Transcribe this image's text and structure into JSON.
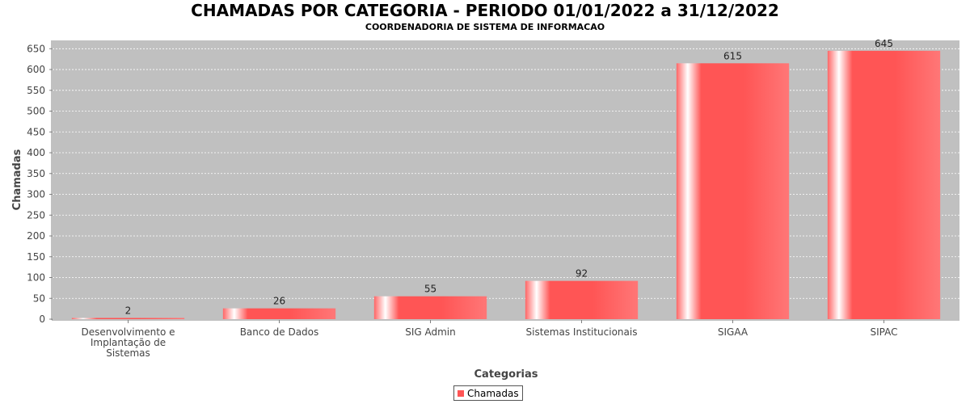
{
  "chart_data": {
    "type": "bar",
    "title": "CHAMADAS POR CATEGORIA - PERIODO 01/01/2022 a 31/12/2022",
    "subtitle": "COORDENADORIA DE SISTEMA DE INFORMACAO",
    "xlabel": "Categorias",
    "ylabel": "Chamadas",
    "categories": [
      [
        "Desenvolvimento e",
        "Implantação de",
        "Sistemas"
      ],
      [
        "Banco de Dados"
      ],
      [
        "SIG Admin"
      ],
      [
        "Sistemas Institucionais"
      ],
      [
        "SIGAA"
      ],
      [
        "SIPAC"
      ]
    ],
    "series": [
      {
        "name": "Chamadas",
        "values": [
          2,
          26,
          55,
          92,
          615,
          645
        ]
      }
    ],
    "ylim": [
      0,
      670
    ],
    "yticks": [
      0,
      50,
      100,
      150,
      200,
      250,
      300,
      350,
      400,
      450,
      500,
      550,
      600,
      650
    ],
    "grid": true,
    "legend_position": "bottom-center",
    "colors": {
      "bar": "#ff5555",
      "plot_bg": "#c0c0c0",
      "gridline": "#ffffff"
    }
  }
}
